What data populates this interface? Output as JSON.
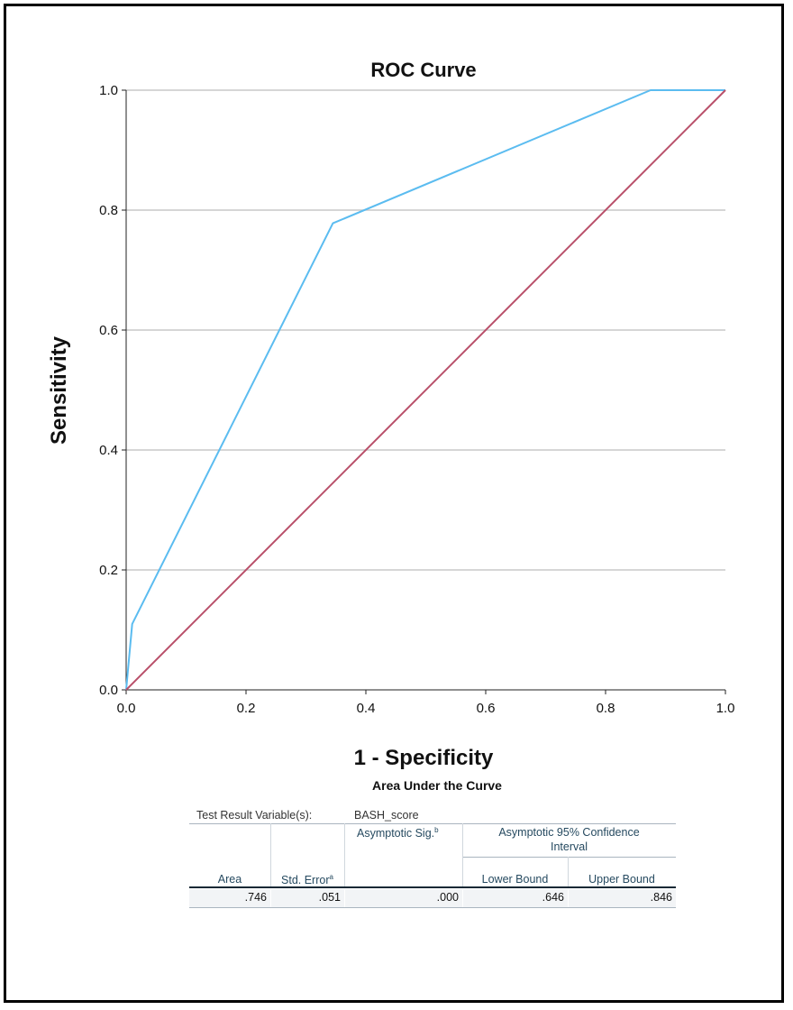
{
  "chart_data": {
    "type": "line",
    "title": "ROC Curve",
    "xlabel": "1 - Specificity",
    "ylabel": "Sensitivity",
    "xlim": [
      0.0,
      1.0
    ],
    "ylim": [
      0.0,
      1.0
    ],
    "x_ticks": [
      "0.0",
      "0.2",
      "0.4",
      "0.6",
      "0.8",
      "1.0"
    ],
    "y_ticks": [
      "0.0",
      "0.2",
      "0.4",
      "0.6",
      "0.8",
      "1.0"
    ],
    "grid": "horizontal",
    "series": [
      {
        "color": "#5bbcf0",
        "points": [
          [
            0.0,
            0.0
          ],
          [
            0.01,
            0.11
          ],
          [
            0.345,
            0.778
          ],
          [
            0.875,
            1.0
          ],
          [
            1.0,
            1.0
          ]
        ]
      },
      {
        "color": "#b9506a",
        "points": [
          [
            0.0,
            0.0
          ],
          [
            1.0,
            1.0
          ]
        ]
      }
    ]
  },
  "auc_table": {
    "title": "Area Under the Curve",
    "test_result_label": "Test Result Variable(s):",
    "test_result_value": "BASH_score",
    "headers": {
      "area": "Area",
      "std_error": "Std. Error",
      "std_error_sup": "a",
      "asym_sig": "Asymptotic Sig.",
      "asym_sig_sup": "b",
      "ci_line1": "Asymptotic 95% Confidence",
      "ci_line2": "Interval",
      "lower": "Lower Bound",
      "upper": "Upper Bound"
    },
    "row": {
      "area": ".746",
      "std_error": ".051",
      "asym_sig": ".000",
      "lower": ".646",
      "upper": ".846"
    }
  }
}
